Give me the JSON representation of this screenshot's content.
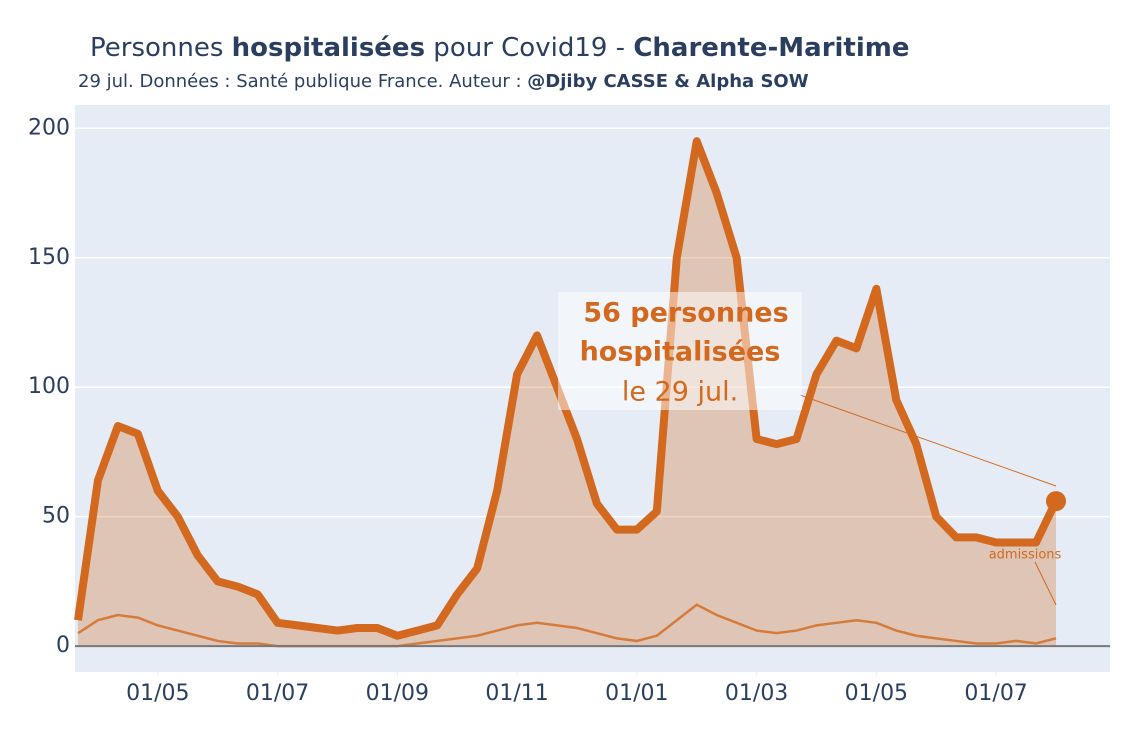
{
  "chart_data": {
    "type": "line",
    "title": [
      "Personnes ",
      "hospitalisées",
      " pour Covid19 - ",
      "Charente-Maritime"
    ],
    "subtitle": [
      "29 jul. Données : Santé publique France. Auteur : ",
      "@Djiby CASSE & Alpha SOW"
    ],
    "x": [
      "20/03",
      "01/04",
      "10/04",
      "20/04",
      "01/05",
      "10/05",
      "20/05",
      "01/06",
      "10/06",
      "20/06",
      "01/07",
      "10/07",
      "20/07",
      "01/08",
      "10/08",
      "20/08",
      "01/09",
      "10/09",
      "20/09",
      "01/10",
      "10/10",
      "20/10",
      "01/11",
      "10/11",
      "20/11",
      "01/12",
      "10/12",
      "20/12",
      "01/01",
      "10/01",
      "20/01",
      "01/02",
      "10/02",
      "20/02",
      "01/03",
      "10/03",
      "20/03",
      "01/04",
      "10/04",
      "20/04",
      "01/05",
      "10/05",
      "20/05",
      "01/06",
      "10/06",
      "20/06",
      "01/07",
      "10/07",
      "20/07",
      "29/07"
    ],
    "series": [
      {
        "color": "#d2691e",
        "values": [
          10,
          64,
          85,
          82,
          60,
          50,
          35,
          25,
          23,
          20,
          9,
          8,
          7,
          6,
          7,
          7,
          4,
          6,
          8,
          20,
          30,
          60,
          105,
          120,
          100,
          80,
          55,
          45,
          45,
          52,
          150,
          195,
          175,
          150,
          80,
          78,
          80,
          105,
          118,
          115,
          138,
          95,
          78,
          50,
          42,
          42,
          40,
          40,
          40,
          56
        ]
      },
      {
        "color": "#d2691e",
        "values": [
          5,
          10,
          12,
          11,
          8,
          6,
          4,
          2,
          1,
          1,
          0,
          0,
          0,
          0,
          0,
          0,
          0,
          1,
          2,
          3,
          4,
          6,
          8,
          9,
          8,
          7,
          5,
          3,
          2,
          4,
          10,
          16,
          12,
          9,
          6,
          5,
          6,
          8,
          9,
          10,
          9,
          6,
          4,
          3,
          2,
          1,
          1,
          2,
          1,
          3
        ]
      }
    ],
    "ylim": [
      -10,
      209
    ],
    "yticks": [
      0,
      50,
      100,
      150,
      200
    ],
    "xticks": [
      {
        "value": 4,
        "label": "01/05"
      },
      {
        "value": 10,
        "label": "01/07"
      },
      {
        "value": 16,
        "label": "01/09"
      },
      {
        "value": 22,
        "label": "01/11"
      },
      {
        "value": 28,
        "label": "01/01"
      },
      {
        "value": 34,
        "label": "01/03"
      },
      {
        "value": 40,
        "label": "01/05"
      },
      {
        "value": 46,
        "label": "01/07"
      }
    ],
    "grid": true,
    "annotation": [
      "56 personnes",
      "hospitalisées",
      "le 29 jul."
    ],
    "annotation2": "admissions"
  }
}
